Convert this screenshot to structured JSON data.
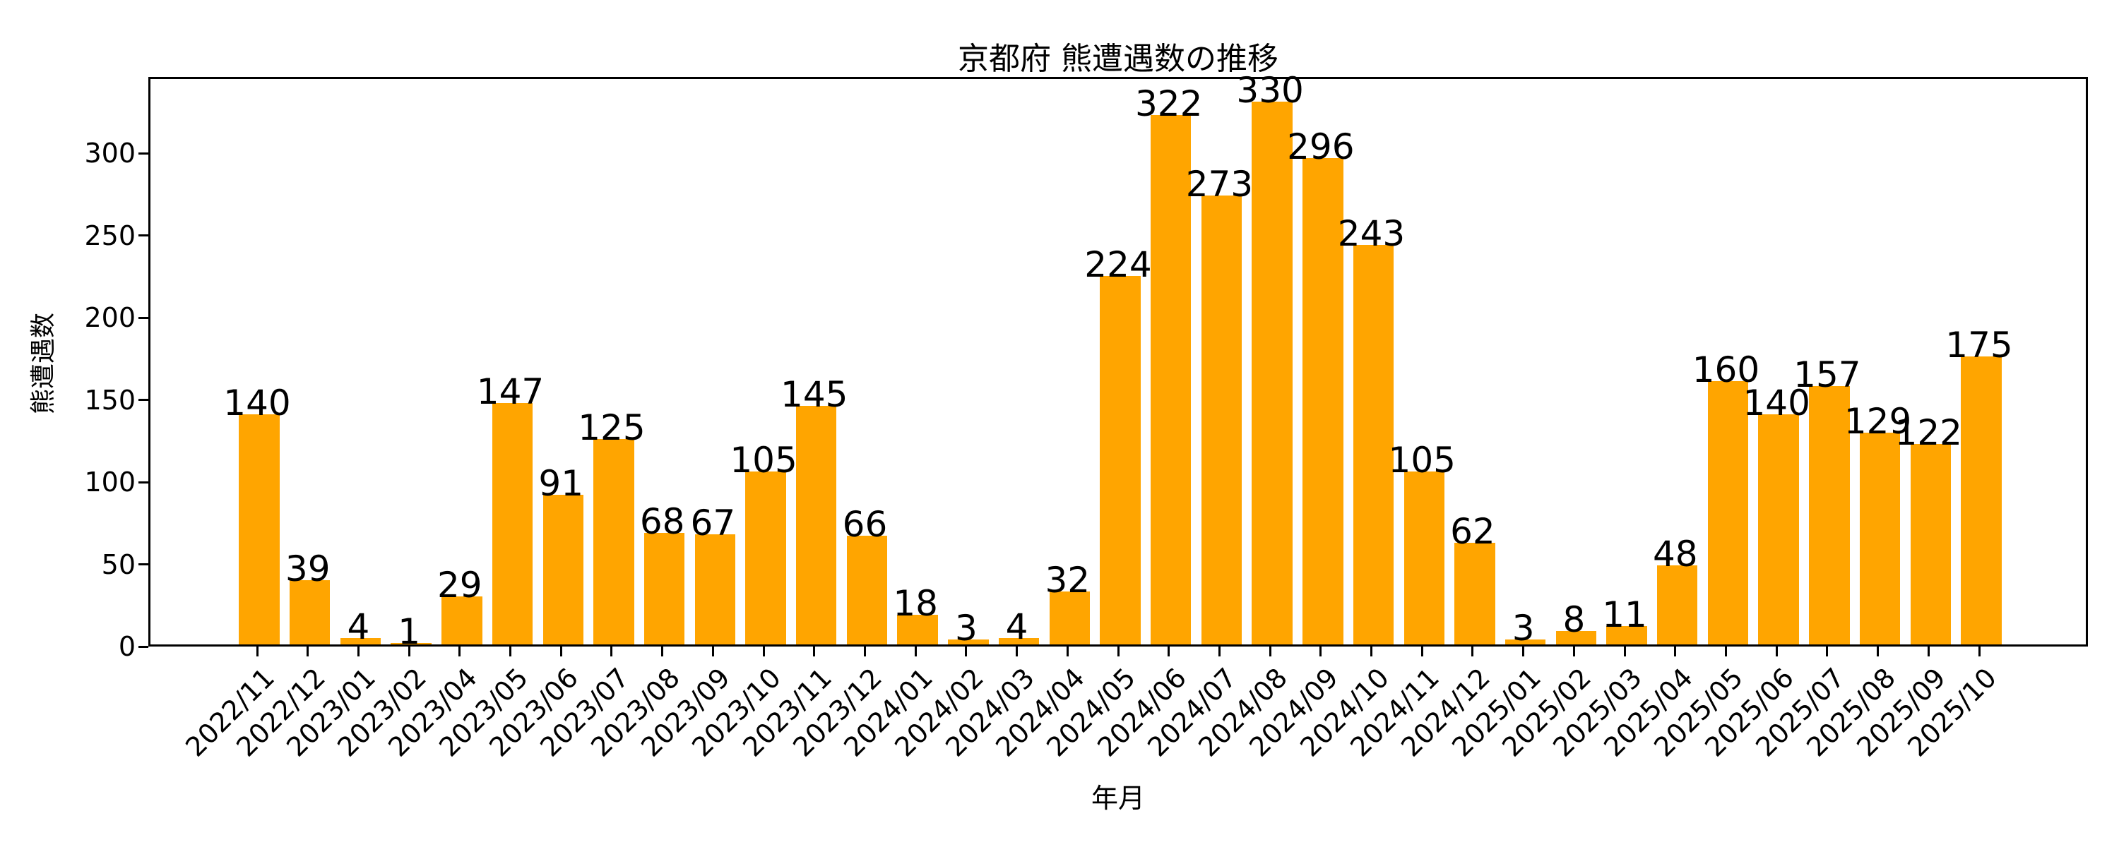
{
  "chart_data": {
    "type": "bar",
    "title": "京都府 熊遭遇数の推移",
    "xlabel": "年月",
    "ylabel": "熊遭遇数",
    "categories": [
      "2022/11",
      "2022/12",
      "2023/01",
      "2023/02",
      "2023/04",
      "2023/05",
      "2023/06",
      "2023/07",
      "2023/08",
      "2023/09",
      "2023/10",
      "2023/11",
      "2023/12",
      "2024/01",
      "2024/02",
      "2024/03",
      "2024/04",
      "2024/05",
      "2024/06",
      "2024/07",
      "2024/08",
      "2024/09",
      "2024/10",
      "2024/11",
      "2024/12",
      "2025/01",
      "2025/02",
      "2025/03",
      "2025/04",
      "2025/05",
      "2025/06",
      "2025/07",
      "2025/08",
      "2025/09",
      "2025/10"
    ],
    "values": [
      140,
      39,
      4,
      1,
      29,
      147,
      91,
      125,
      68,
      67,
      105,
      145,
      66,
      18,
      3,
      4,
      32,
      224,
      322,
      273,
      330,
      296,
      243,
      105,
      62,
      3,
      8,
      11,
      48,
      160,
      140,
      157,
      129,
      122,
      175
    ],
    "yticks": [
      0,
      50,
      100,
      150,
      200,
      250,
      300
    ],
    "ylim": [
      0,
      346.5
    ],
    "grid": false,
    "legend": null,
    "bar_color": "#FFA500",
    "value_labels": true
  }
}
